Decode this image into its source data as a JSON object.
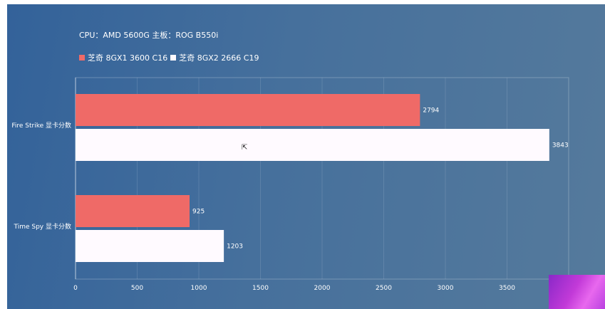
{
  "title": "CPU：AMD 5600G  主板：ROG B550i",
  "chart_data": {
    "type": "bar",
    "orientation": "horizontal",
    "categories": [
      "Fire Strike 显卡分数",
      "Time Spy 显卡分数"
    ],
    "series": [
      {
        "name": "芝奇 8GX1 3600 C16",
        "color": "#ef6a67",
        "values": [
          2794,
          925
        ]
      },
      {
        "name": "芝奇 8GX2 2666 C19",
        "color": "#fffaff",
        "values": [
          3843,
          1203
        ]
      }
    ],
    "xlim": [
      0,
      4000
    ],
    "xticks": [
      "0",
      "500",
      "1000",
      "1500",
      "2000",
      "2500",
      "3000",
      "3500"
    ],
    "xtick_values": [
      0,
      500,
      1000,
      1500,
      2000,
      2500,
      3000,
      3500
    ],
    "data_labels": [
      [
        "2794",
        "925"
      ],
      [
        "3843",
        "1203"
      ]
    ],
    "grid": true,
    "legend_position": "top-left"
  },
  "cursor_icon": "mouse-pointer-icon",
  "thumbnail": "purple-thumbnail"
}
